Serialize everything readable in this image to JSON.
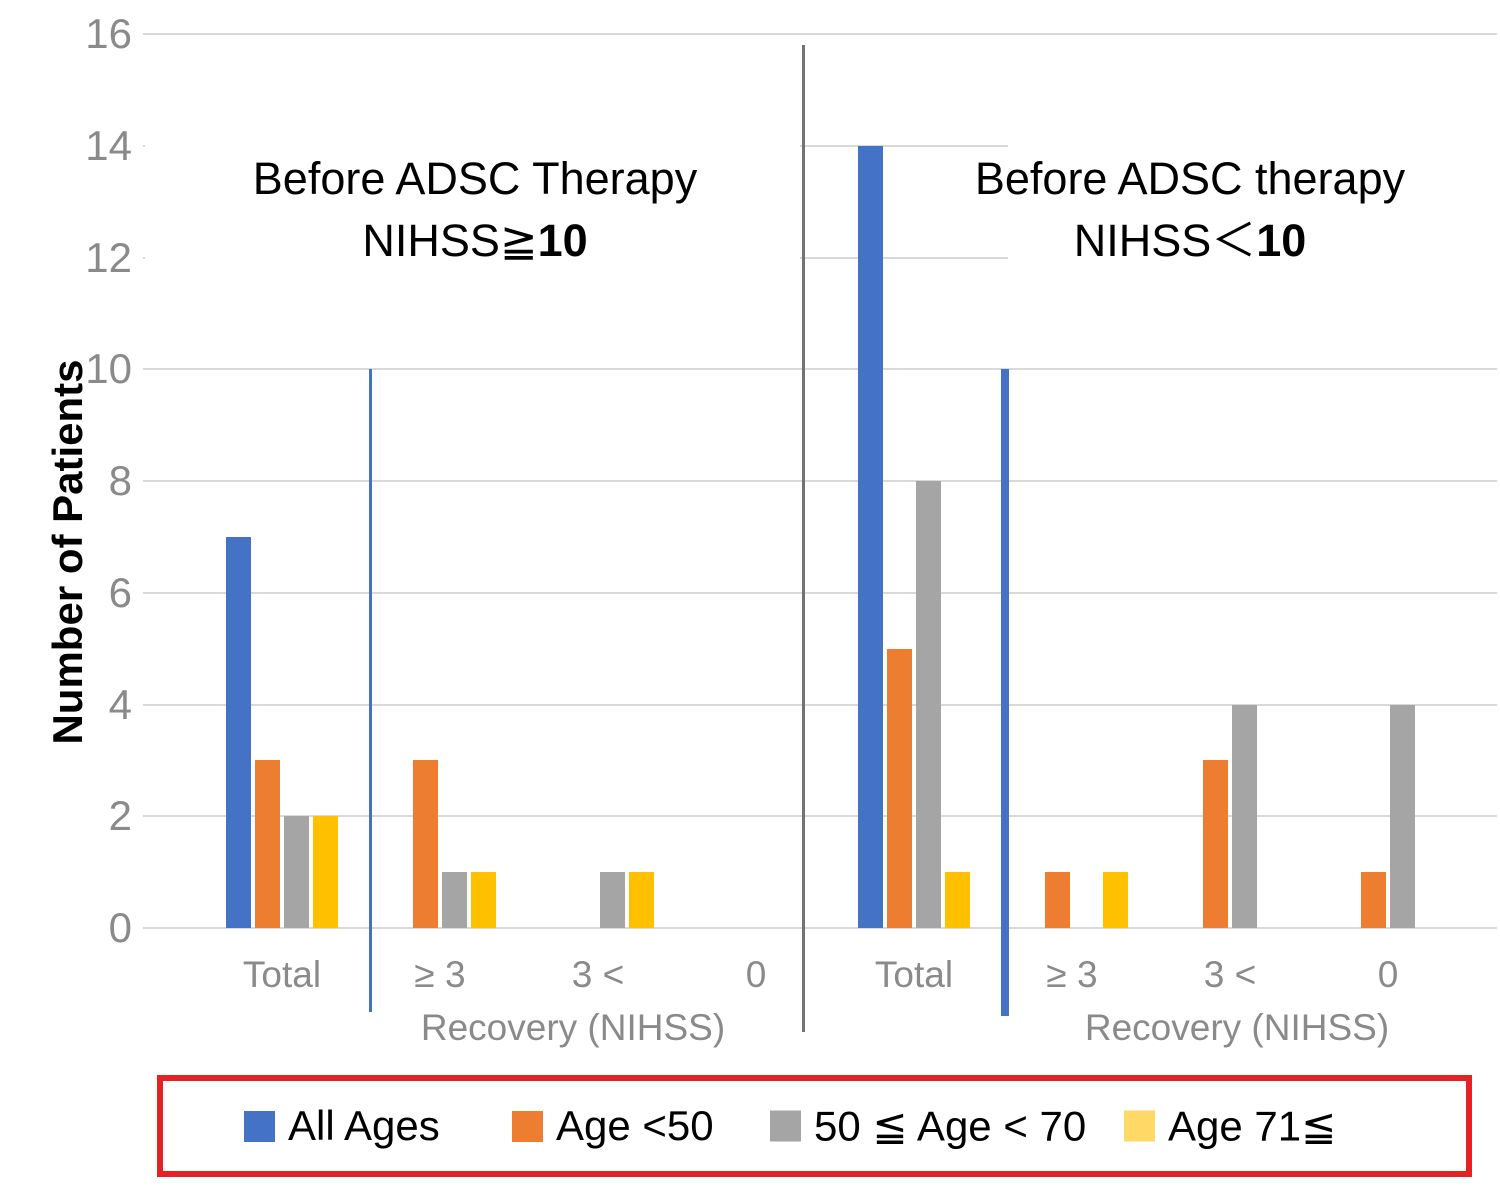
{
  "chart_data": {
    "type": "bar",
    "ylabel": "Number of Patients",
    "ylim": [
      0,
      16
    ],
    "yticks": [
      0,
      2,
      4,
      6,
      8,
      10,
      12,
      14,
      16
    ],
    "grid": true,
    "panels": [
      {
        "title_line1": "Before ADSC Therapy",
        "title_line2_prefix": "NIHSS≧",
        "title_line2_bold": "10",
        "xlabel": "Recovery (NIHSS)",
        "categories": [
          "Total",
          "≥ 3",
          "3 <",
          "0"
        ],
        "series": [
          {
            "name": "All Ages",
            "color": "#4472C4",
            "values": [
              7,
              0,
              0,
              0
            ]
          },
          {
            "name": "Age <50",
            "color": "#ED7D31",
            "values": [
              3,
              3,
              0,
              0
            ]
          },
          {
            "name": "50 ≦ Age < 70",
            "color": "#A5A5A5",
            "values": [
              2,
              1,
              1,
              0
            ]
          },
          {
            "name": "Age 71≦",
            "color": "#FFC000",
            "values": [
              2,
              1,
              1,
              0
            ]
          }
        ]
      },
      {
        "title_line1": "Before ADSC therapy",
        "title_line2_prefix": "NIHSS＜",
        "title_line2_bold": "10",
        "xlabel": "Recovery (NIHSS)",
        "categories": [
          "Total",
          "≥ 3",
          "3 <",
          "0"
        ],
        "series": [
          {
            "name": "All Ages",
            "color": "#4472C4",
            "values": [
              14,
              0,
              0,
              0
            ]
          },
          {
            "name": "Age <50",
            "color": "#ED7D31",
            "values": [
              5,
              1,
              3,
              1
            ]
          },
          {
            "name": "50 ≦ Age < 70",
            "color": "#A5A5A5",
            "values": [
              8,
              0,
              4,
              4
            ]
          },
          {
            "name": "Age 71≦",
            "color": "#FFC000",
            "values": [
              1,
              1,
              0,
              0
            ]
          }
        ]
      }
    ],
    "legend": {
      "position": "bottom",
      "border_color": "#E32222",
      "items": [
        {
          "label": "All Ages",
          "color": "#4472C4"
        },
        {
          "label": "Age <50",
          "color": "#ED7D31"
        },
        {
          "label": "50 ≦ Age < 70",
          "color": "#A5A5A5"
        },
        {
          "label": "Age 71≦",
          "color": "#FFD966"
        }
      ]
    },
    "annotations": {
      "panel_divider_color": "#737373",
      "threshold_line_color": "#4472C4",
      "threshold_line_value": 10,
      "gridline_color": "#D9D9D9",
      "tick_label_color": "#8A8A8A"
    }
  }
}
